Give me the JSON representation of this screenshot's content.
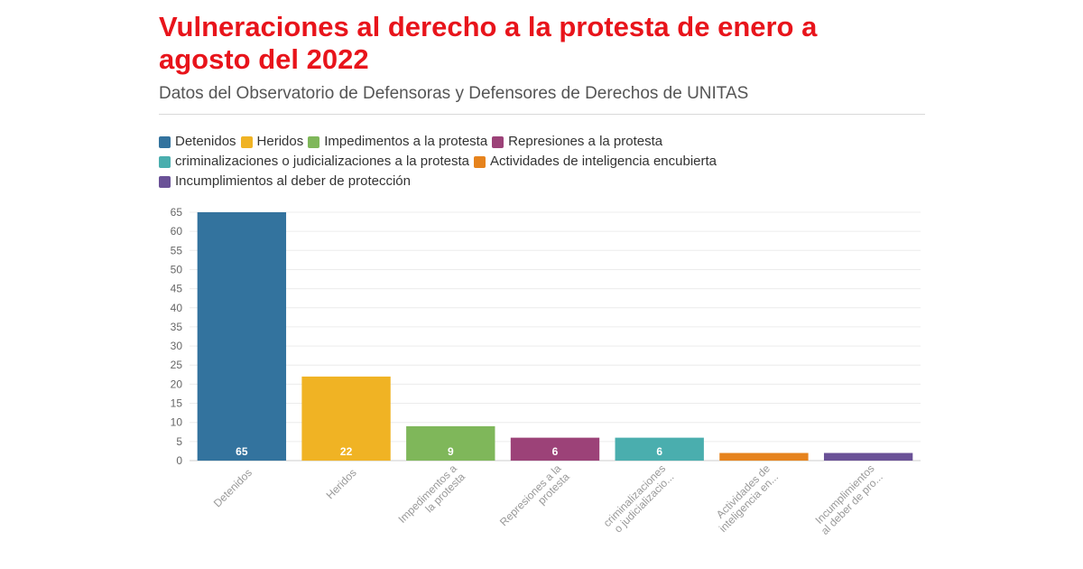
{
  "header": {
    "title": "Vulneraciones al derecho a la protesta de enero a agosto del 2022",
    "subtitle": "Datos del Observatorio de Defensoras y Defensores de Derechos de UNITAS"
  },
  "chart_data": {
    "type": "bar",
    "categories": [
      "Detenidos",
      "Heridos",
      "Impedimentos a la protesta",
      "Represiones a la protesta",
      "criminalizaciones o judicializaciones a la protesta",
      "Actividades de inteligencia encubierta",
      "Incumplimientos al deber de protección"
    ],
    "tick_labels": [
      [
        "Detenidos"
      ],
      [
        "Heridos"
      ],
      [
        "Impedimentos a",
        "la protesta"
      ],
      [
        "Represiones a la",
        "protesta"
      ],
      [
        "criminalizaciones",
        "o judicializacio..."
      ],
      [
        "Actividades de",
        "inteligencia en..."
      ],
      [
        "Incumplimientos",
        "al deber de pro..."
      ]
    ],
    "values": [
      65,
      22,
      9,
      6,
      6,
      2,
      2
    ],
    "data_labels": [
      "65",
      "22",
      "9",
      "6",
      "6",
      "",
      ""
    ],
    "colors": [
      "#33739e",
      "#f0b324",
      "#7fb75a",
      "#9c4278",
      "#4aaeae",
      "#e6831d",
      "#6a5197"
    ],
    "ylim": [
      0,
      65
    ],
    "yticks": [
      0,
      5,
      10,
      15,
      20,
      25,
      30,
      35,
      40,
      45,
      50,
      55,
      60,
      65
    ],
    "grid": true,
    "legend_position": "top"
  }
}
